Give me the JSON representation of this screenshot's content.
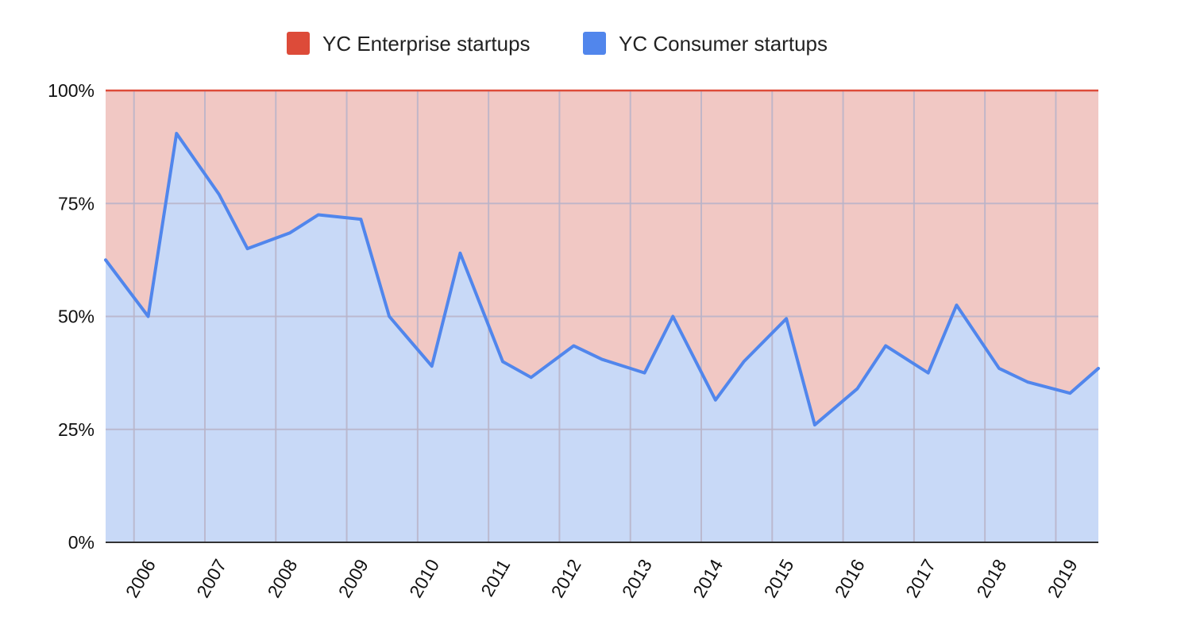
{
  "chart_data": {
    "type": "area",
    "stacked": "percent",
    "title": "",
    "xlabel": "",
    "ylabel": "",
    "x_tick_labels": [
      "2006",
      "2007",
      "2008",
      "2009",
      "2010",
      "2011",
      "2012",
      "2013",
      "2014",
      "2015",
      "2016",
      "2017",
      "2018",
      "2019"
    ],
    "y_tick_labels": [
      "0%",
      "25%",
      "50%",
      "75%",
      "100%"
    ],
    "ylim": [
      0,
      100
    ],
    "x_range": [
      2005.6,
      2019.6
    ],
    "grid": true,
    "legend_position": "top",
    "series": [
      {
        "name": "YC Enterprise startups",
        "color": "#dd4b39",
        "fill": "#f1c8c4"
      },
      {
        "name": "YC Consumer startups",
        "color": "#5186ec",
        "fill": "#c8d9f7"
      }
    ],
    "consumer_share": {
      "x": [
        "2005 S",
        "2006 W",
        "2006 S",
        "2007 W",
        "2007 S",
        "2008 W",
        "2008 S",
        "2009 W",
        "2009 S",
        "2010 W",
        "2010 S",
        "2011 W",
        "2011 S",
        "2012 W",
        "2012 S",
        "2013 W",
        "2013 S",
        "2014 W",
        "2014 S",
        "2015 W",
        "2015 S",
        "2016 W",
        "2016 S",
        "2017 W",
        "2017 S",
        "2018 W",
        "2018 S",
        "2019 W",
        "2019 S"
      ],
      "values": [
        62.5,
        50,
        90.5,
        77,
        65,
        68.5,
        72.5,
        71.5,
        50,
        39,
        64,
        40,
        36.5,
        43.5,
        40.5,
        37.5,
        50,
        31.5,
        40,
        49.5,
        26,
        34,
        43.5,
        37.5,
        52.5,
        38.5,
        35.5,
        33,
        38.5
      ]
    }
  }
}
